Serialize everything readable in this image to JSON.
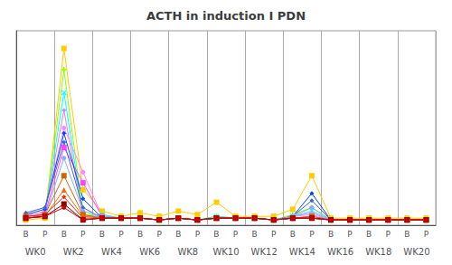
{
  "chart_data": {
    "type": "line",
    "title": "ACTH in induction I PDN",
    "categories": [
      "B",
      "P",
      "B",
      "P",
      "B",
      "P",
      "B",
      "P",
      "B",
      "P",
      "B",
      "P",
      "B",
      "P",
      "B",
      "P",
      "B",
      "P",
      "B",
      "P",
      "B",
      "P"
    ],
    "annotations": [
      "WK0",
      "WK2",
      "WK4",
      "WK6",
      "WK8",
      "WK10",
      "WK12",
      "WK14",
      "WK16",
      "WK18",
      "WK20"
    ],
    "ylim": [
      0,
      110
    ],
    "grid": false,
    "tick_labels": "x",
    "series": [
      {
        "color": "#ffcc00",
        "marker": "square",
        "values": [
          3,
          4,
          100,
          20,
          8,
          5,
          7,
          5,
          8,
          6,
          13,
          5,
          5,
          5,
          9,
          28,
          4,
          4,
          4,
          4,
          4,
          4
        ]
      },
      {
        "color": "#88ff00",
        "marker": "plus",
        "values": [
          4,
          5,
          88,
          6,
          6,
          4,
          4,
          3,
          4,
          3,
          5,
          4,
          4,
          3,
          6,
          10,
          3,
          3,
          3,
          3,
          3,
          3
        ]
      },
      {
        "color": "#00ffff",
        "marker": "x",
        "values": [
          5,
          6,
          75,
          5,
          6,
          4,
          4,
          3,
          4,
          3,
          5,
          4,
          4,
          3,
          5,
          8,
          3,
          3,
          3,
          3,
          3,
          3
        ]
      },
      {
        "color": "#cc88ff",
        "marker": "diamond",
        "values": [
          6,
          7,
          65,
          5,
          5,
          4,
          4,
          3,
          4,
          3,
          4,
          4,
          4,
          3,
          5,
          7,
          3,
          3,
          3,
          3,
          3,
          3
        ]
      },
      {
        "color": "#ff88ff",
        "marker": "circle",
        "values": [
          5,
          8,
          55,
          30,
          5,
          4,
          4,
          3,
          4,
          3,
          4,
          4,
          4,
          3,
          5,
          6,
          3,
          3,
          3,
          3,
          3,
          3
        ]
      },
      {
        "color": "#ff44ff",
        "marker": "square",
        "values": [
          4,
          6,
          44,
          24,
          5,
          4,
          4,
          3,
          4,
          3,
          4,
          4,
          4,
          3,
          4,
          5,
          3,
          3,
          3,
          3,
          3,
          3
        ]
      },
      {
        "color": "#0044ff",
        "marker": "diamond",
        "values": [
          6,
          9,
          52,
          15,
          4,
          4,
          4,
          3,
          4,
          3,
          4,
          4,
          4,
          3,
          5,
          18,
          3,
          3,
          3,
          3,
          3,
          3
        ]
      },
      {
        "color": "#4466cc",
        "marker": "diamond",
        "values": [
          7,
          10,
          47,
          10,
          4,
          4,
          4,
          3,
          4,
          3,
          4,
          4,
          4,
          3,
          5,
          14,
          3,
          3,
          3,
          3,
          3,
          3
        ]
      },
      {
        "color": "#88aaff",
        "marker": "circle",
        "values": [
          4,
          5,
          38,
          8,
          5,
          4,
          4,
          3,
          4,
          3,
          4,
          4,
          4,
          3,
          5,
          10,
          3,
          3,
          3,
          3,
          3,
          3
        ]
      },
      {
        "color": "#cc6600",
        "marker": "square",
        "values": [
          5,
          6,
          28,
          6,
          4,
          4,
          4,
          3,
          4,
          3,
          4,
          4,
          4,
          3,
          4,
          5,
          3,
          3,
          3,
          3,
          3,
          3
        ]
      },
      {
        "color": "#ff6600",
        "marker": "triangle",
        "values": [
          4,
          5,
          20,
          5,
          4,
          4,
          4,
          3,
          4,
          3,
          4,
          4,
          4,
          3,
          4,
          4,
          3,
          3,
          3,
          3,
          3,
          3
        ]
      },
      {
        "color": "#ff2200",
        "marker": "diamond",
        "values": [
          5,
          6,
          16,
          4,
          4,
          4,
          4,
          3,
          4,
          3,
          4,
          4,
          4,
          3,
          4,
          4,
          3,
          3,
          3,
          3,
          3,
          3
        ]
      },
      {
        "color": "#880000",
        "marker": "square",
        "values": [
          4,
          5,
          12,
          3,
          4,
          4,
          4,
          3,
          4,
          3,
          4,
          4,
          4,
          3,
          4,
          4,
          3,
          3,
          3,
          3,
          3,
          3
        ]
      },
      {
        "color": "#cc0000",
        "marker": "circle",
        "values": [
          4,
          5,
          10,
          3,
          4,
          4,
          4,
          3,
          4,
          3,
          4,
          4,
          4,
          3,
          4,
          4,
          3,
          3,
          3,
          3,
          3,
          3
        ]
      }
    ]
  }
}
